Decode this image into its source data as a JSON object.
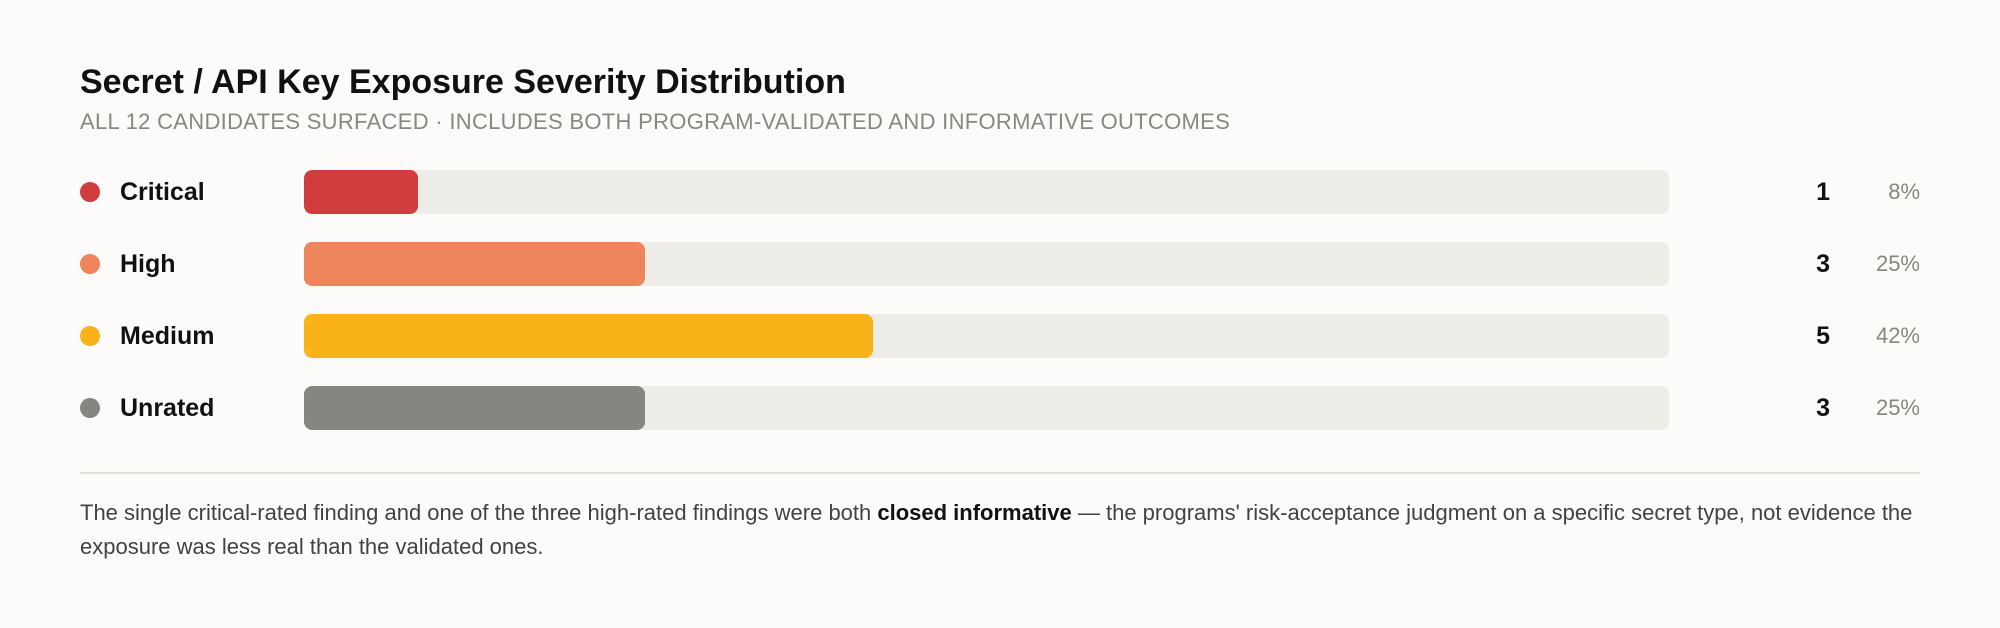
{
  "colors": {
    "critical": "#d13c3c",
    "high": "#ee845b",
    "medium": "#f9b319",
    "unrated": "#87857f",
    "track": "#eeece7"
  },
  "chart_data": {
    "type": "bar",
    "orientation": "horizontal",
    "title": "Secret / API Key Exposure Severity Distribution",
    "subtitle": "ALL 12 CANDIDATES SURFACED · INCLUDES BOTH PROGRAM-VALIDATED AND INFORMATIVE OUTCOMES",
    "total": 12,
    "categories": [
      "Critical",
      "High",
      "Medium",
      "Unrated"
    ],
    "values": [
      1,
      3,
      5,
      3
    ],
    "percent_labels": [
      "8%",
      "25%",
      "42%",
      "25%"
    ],
    "series_colors": [
      "#d13c3c",
      "#ee845b",
      "#f9b319",
      "#87857f"
    ],
    "grid": false,
    "legend": "none"
  },
  "note": {
    "before": "The single critical-rated finding and one of the three high-rated findings were both ",
    "emphasis": "closed informative",
    "after": " — the programs' risk-acceptance judgment on a specific secret type, not evidence the exposure was less real than the validated ones."
  }
}
